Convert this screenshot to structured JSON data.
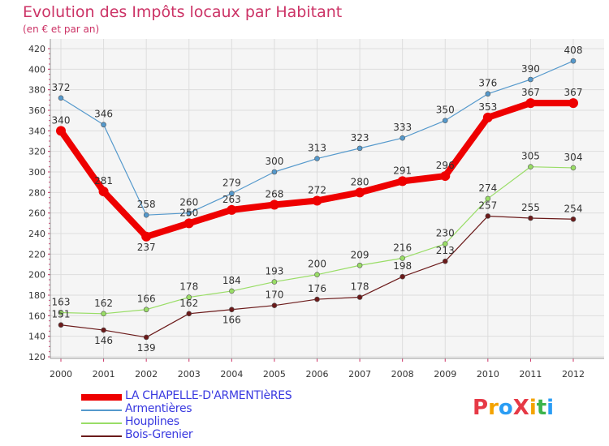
{
  "header": {
    "title": "Evolution des Impôts locaux par Habitant",
    "subtitle": "(en € et par an)"
  },
  "logo": {
    "text": "ProXiti",
    "letters": [
      {
        "ch": "P",
        "color": "#e63946"
      },
      {
        "ch": "r",
        "color": "#f4a300"
      },
      {
        "ch": "o",
        "color": "#2a9df4"
      },
      {
        "ch": "X",
        "color": "#e63946"
      },
      {
        "ch": "i",
        "color": "#f4a300"
      },
      {
        "ch": "t",
        "color": "#3cb44b"
      },
      {
        "ch": "i",
        "color": "#2a9df4"
      }
    ]
  },
  "chart_data": {
    "type": "line",
    "title": "Evolution des Impôts locaux par Habitant",
    "subtitle": "(en € et par an)",
    "x": [
      "2000",
      "2001",
      "2002",
      "2003",
      "2004",
      "2005",
      "2006",
      "2007",
      "2008",
      "2009",
      "2010",
      "2011",
      "2012"
    ],
    "ylim": [
      120,
      420
    ],
    "yticks": [
      120,
      140,
      160,
      180,
      200,
      220,
      240,
      260,
      280,
      300,
      320,
      340,
      360,
      380,
      400,
      420
    ],
    "grid": true,
    "legend": "bottom-left",
    "series": [
      {
        "name": "Bois-Grenier",
        "color": "#6b1a1a",
        "values": [
          151,
          146,
          139,
          162,
          166,
          170,
          176,
          178,
          198,
          213,
          257,
          255,
          254
        ]
      },
      {
        "name": "Houplines",
        "color": "#99dd66",
        "values": [
          163,
          162,
          166,
          178,
          184,
          193,
          200,
          209,
          216,
          230,
          274,
          305,
          304
        ]
      },
      {
        "name": "Armentières",
        "color": "#5599cc",
        "values": [
          372,
          346,
          258,
          260,
          279,
          300,
          313,
          323,
          333,
          350,
          376,
          390,
          408
        ]
      },
      {
        "name": "LA CHAPELLE-D'ARMENTIèRES",
        "color": "#ee0000",
        "values": [
          340,
          281,
          237,
          250,
          263,
          268,
          272,
          280,
          291,
          296,
          353,
          367,
          367
        ]
      }
    ]
  }
}
